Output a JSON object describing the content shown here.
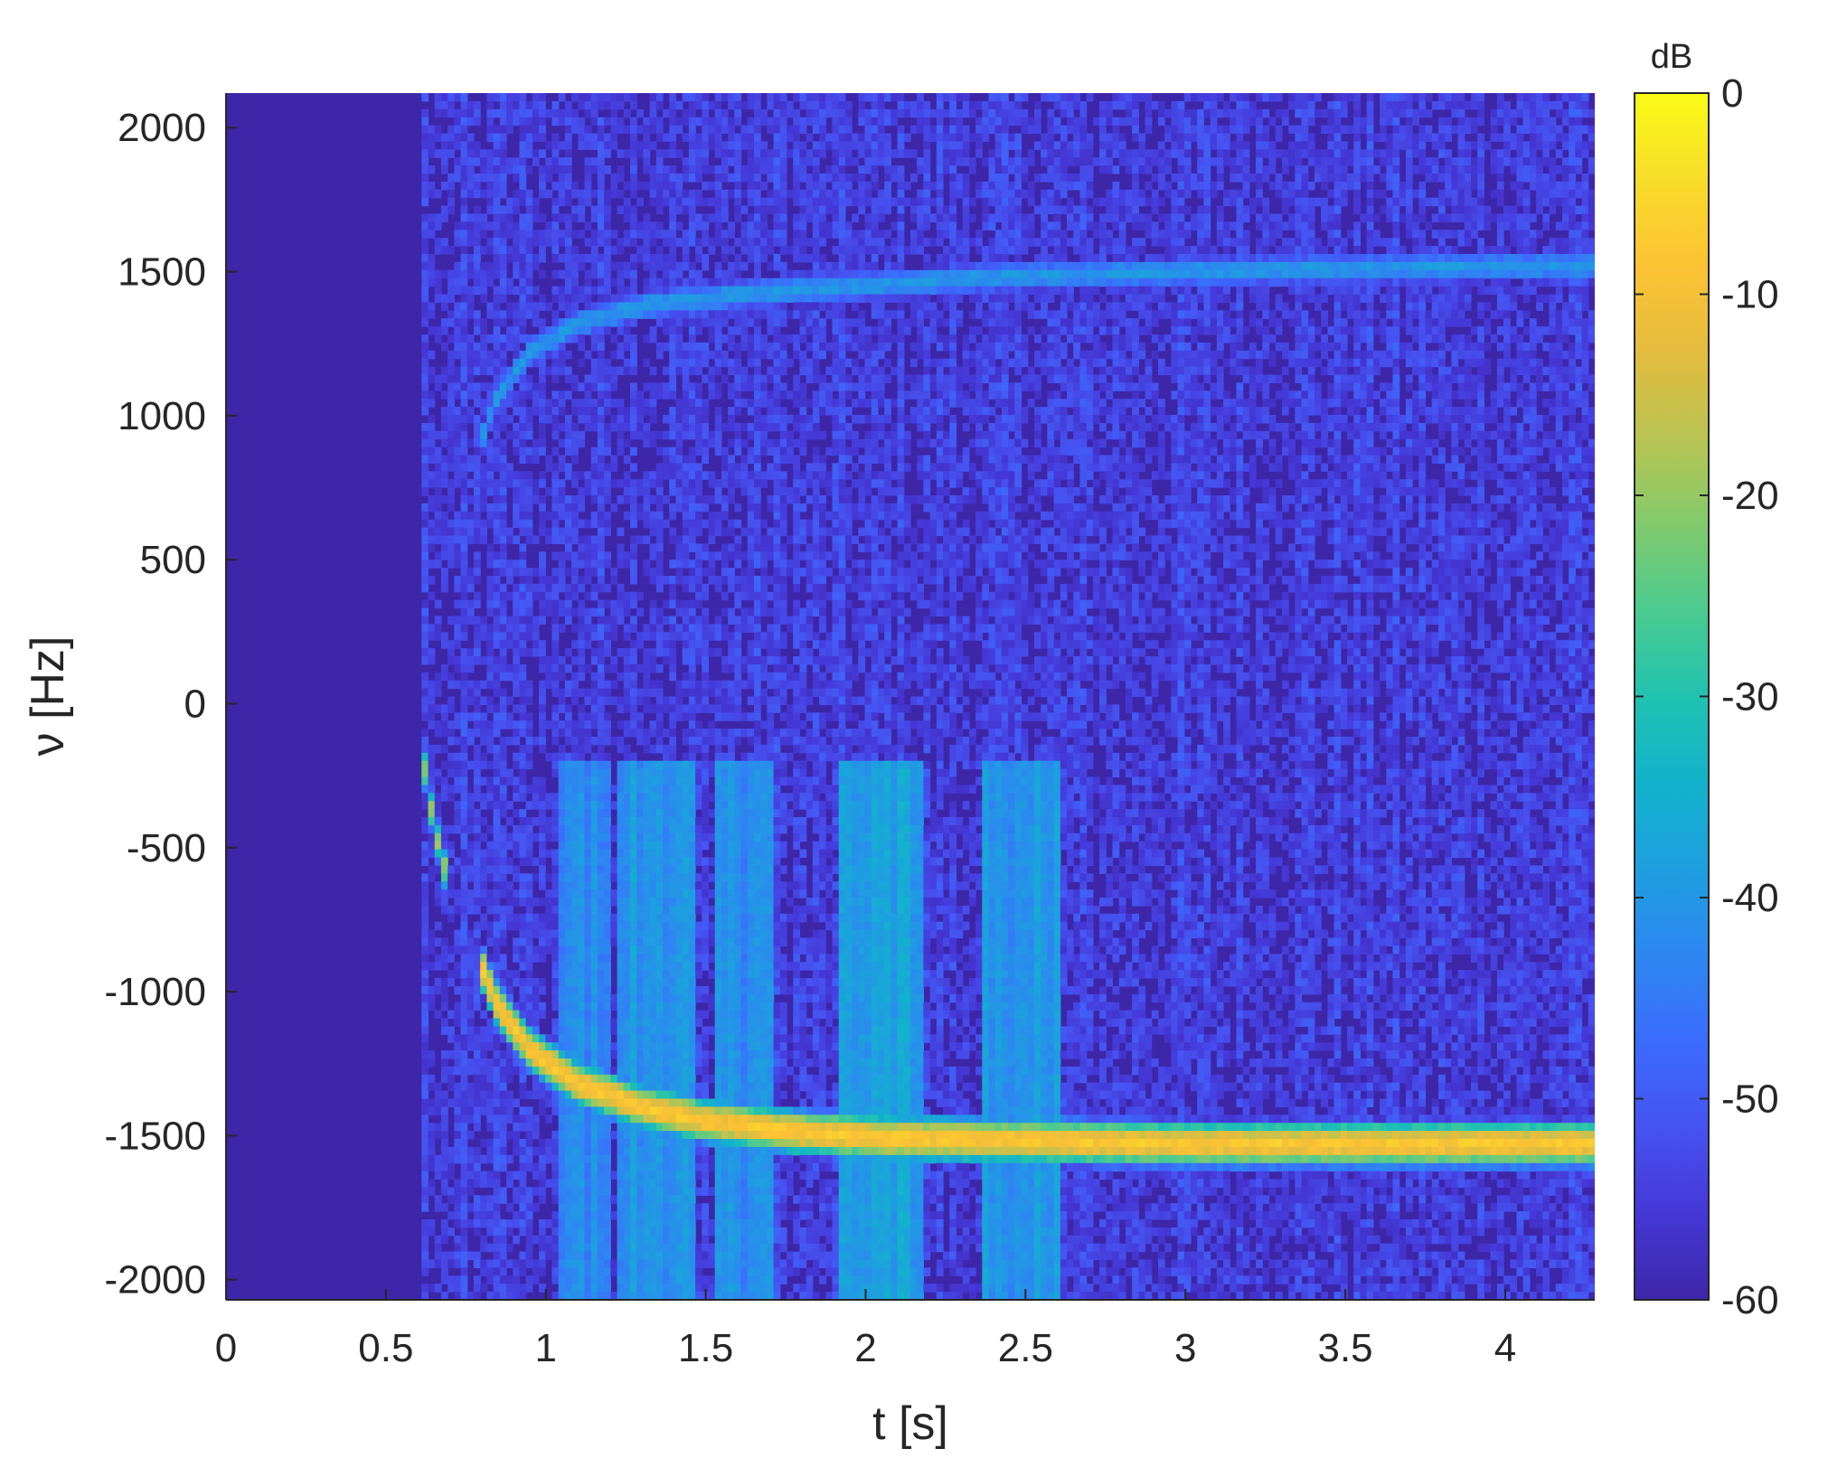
{
  "chart_data": {
    "type": "heatmap",
    "title": "",
    "xlabel": "t [s]",
    "ylabel": "ν [Hz]",
    "xlim": [
      0,
      4.28
    ],
    "ylim": [
      -2070,
      2120
    ],
    "x_ticks": [
      0,
      0.5,
      1,
      1.5,
      2,
      2.5,
      3,
      3.5,
      4
    ],
    "x_tick_labels": [
      "0",
      "0.5",
      "1",
      "1.5",
      "2",
      "2.5",
      "3",
      "3.5",
      "4"
    ],
    "y_ticks": [
      2000,
      1500,
      1000,
      500,
      0,
      -500,
      -1000,
      -1500,
      -2000
    ],
    "y_tick_labels": [
      "2000",
      "1500",
      "1000",
      "500",
      "0",
      "-500",
      "-1000",
      "-1500",
      "-2000"
    ],
    "colorbar": {
      "label": "dB",
      "limits": [
        -60,
        0
      ],
      "ticks": [
        0,
        -10,
        -20,
        -30,
        -40,
        -50,
        -60
      ],
      "tick_labels": [
        "0",
        "-10",
        "-20",
        "-30",
        "-40",
        "-50",
        "-60"
      ],
      "colormap": "parula",
      "colors": [
        "#3e26a8",
        "#4538d7",
        "#4653f1",
        "#3b6cfd",
        "#2d87f1",
        "#1e9fe0",
        "#12b2cc",
        "#21c2b0",
        "#4bcb90",
        "#82ca6c",
        "#b9c452",
        "#e4bc3e",
        "#fcc333",
        "#f8dc2a",
        "#f9fb15"
      ]
    },
    "noise_floor_db": -55,
    "silent_until_s": 0.61,
    "series": [
      {
        "values": [
          [
            0.62,
            -220
          ],
          [
            0.65,
            -420
          ],
          [
            0.68,
            -560
          ],
          [
            0.7,
            -640
          ]
        ],
        "peak_db": -20
      },
      {
        "values": [
          [
            0.8,
            -920
          ],
          [
            0.85,
            -1050
          ],
          [
            0.95,
            -1200
          ],
          [
            1.1,
            -1320
          ],
          [
            1.3,
            -1400
          ],
          [
            1.5,
            -1450
          ],
          [
            1.8,
            -1490
          ],
          [
            2.1,
            -1510
          ],
          [
            2.5,
            -1520
          ],
          [
            3.0,
            -1530
          ],
          [
            3.5,
            -1530
          ],
          [
            4.28,
            -1530
          ]
        ],
        "peak_db": -8
      },
      {
        "values": [
          [
            0.8,
            920
          ],
          [
            0.85,
            1070
          ],
          [
            0.95,
            1220
          ],
          [
            1.1,
            1320
          ],
          [
            1.3,
            1380
          ],
          [
            1.6,
            1420
          ],
          [
            2.0,
            1450
          ],
          [
            2.4,
            1480
          ],
          [
            3.0,
            1500
          ],
          [
            3.5,
            1510
          ],
          [
            4.28,
            1520
          ]
        ],
        "peak_db": -40
      }
    ],
    "broadband_bursts": [
      {
        "t": 1.12,
        "width_s": 0.08,
        "level_db": -42
      },
      {
        "t": 1.35,
        "width_s": 0.12,
        "level_db": -40
      },
      {
        "t": 1.62,
        "width_s": 0.1,
        "level_db": -42
      },
      {
        "t": 2.05,
        "width_s": 0.14,
        "level_db": -38
      },
      {
        "t": 2.48,
        "width_s": 0.12,
        "level_db": -40
      }
    ]
  }
}
